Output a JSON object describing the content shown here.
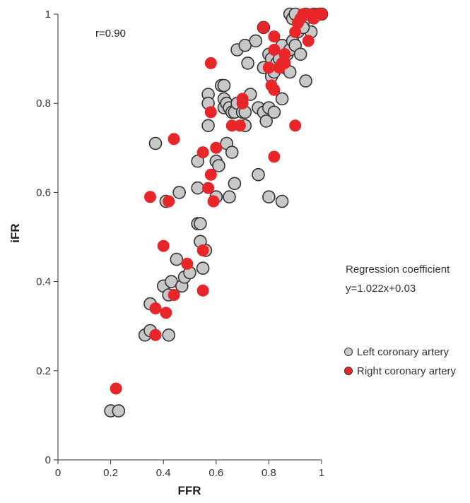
{
  "chart_data": {
    "type": "scatter",
    "title": "",
    "xlabel": "FFR",
    "ylabel": "iFR",
    "xlim": [
      0,
      1
    ],
    "ylim": [
      0,
      1
    ],
    "xticks": [
      0,
      0.2,
      0.4,
      0.6,
      0.8,
      1
    ],
    "yticks": [
      0,
      0.2,
      0.4,
      0.6,
      0.8,
      1
    ],
    "xtick_labels": [
      "0",
      "0.2",
      "0.4",
      "0.6",
      "0.8",
      "1"
    ],
    "ytick_labels": [
      "0",
      "0.2",
      "0.4",
      "0.6",
      "0.8",
      "1"
    ],
    "grid": false,
    "legend_position": "right",
    "annotation_r": "r=0.90",
    "regression_title": "Regression coefficient",
    "regression_equation": "y=1.022x+0.03",
    "series": [
      {
        "name": "Left coronary artery",
        "color": "#c8c8c8",
        "edge_color": "#333333",
        "points": [
          [
            0.2,
            0.11
          ],
          [
            0.23,
            0.11
          ],
          [
            0.33,
            0.28
          ],
          [
            0.35,
            0.29
          ],
          [
            0.42,
            0.28
          ],
          [
            0.35,
            0.35
          ],
          [
            0.4,
            0.39
          ],
          [
            0.42,
            0.37
          ],
          [
            0.43,
            0.4
          ],
          [
            0.47,
            0.39
          ],
          [
            0.48,
            0.41
          ],
          [
            0.5,
            0.42
          ],
          [
            0.45,
            0.45
          ],
          [
            0.55,
            0.43
          ],
          [
            0.56,
            0.47
          ],
          [
            0.54,
            0.49
          ],
          [
            0.53,
            0.53
          ],
          [
            0.54,
            0.53
          ],
          [
            0.37,
            0.71
          ],
          [
            0.41,
            0.58
          ],
          [
            0.46,
            0.6
          ],
          [
            0.53,
            0.61
          ],
          [
            0.53,
            0.67
          ],
          [
            0.6,
            0.67
          ],
          [
            0.61,
            0.66
          ],
          [
            0.64,
            0.71
          ],
          [
            0.66,
            0.69
          ],
          [
            0.65,
            0.59
          ],
          [
            0.67,
            0.62
          ],
          [
            0.6,
            0.59
          ],
          [
            0.57,
            0.82
          ],
          [
            0.57,
            0.8
          ],
          [
            0.57,
            0.75
          ],
          [
            0.62,
            0.84
          ],
          [
            0.63,
            0.84
          ],
          [
            0.63,
            0.81
          ],
          [
            0.63,
            0.79
          ],
          [
            0.64,
            0.8
          ],
          [
            0.65,
            0.79
          ],
          [
            0.66,
            0.78
          ],
          [
            0.67,
            0.78
          ],
          [
            0.68,
            0.8
          ],
          [
            0.7,
            0.78
          ],
          [
            0.71,
            0.78
          ],
          [
            0.71,
            0.75
          ],
          [
            0.73,
            0.82
          ],
          [
            0.76,
            0.79
          ],
          [
            0.78,
            0.78
          ],
          [
            0.79,
            0.76
          ],
          [
            0.8,
            0.79
          ],
          [
            0.82,
            0.78
          ],
          [
            0.81,
            0.86
          ],
          [
            0.85,
            0.81
          ],
          [
            0.76,
            0.64
          ],
          [
            0.8,
            0.59
          ],
          [
            0.85,
            0.58
          ],
          [
            0.68,
            0.92
          ],
          [
            0.71,
            0.93
          ],
          [
            0.72,
            0.89
          ],
          [
            0.75,
            0.94
          ],
          [
            0.78,
            0.97
          ],
          [
            0.78,
            0.88
          ],
          [
            0.8,
            0.91
          ],
          [
            0.81,
            0.9
          ],
          [
            0.82,
            0.87
          ],
          [
            0.83,
            0.89
          ],
          [
            0.84,
            0.9
          ],
          [
            0.85,
            0.93
          ],
          [
            0.86,
            0.88
          ],
          [
            0.87,
            0.91
          ],
          [
            0.88,
            0.87
          ],
          [
            0.88,
            0.92
          ],
          [
            0.89,
            0.94
          ],
          [
            0.9,
            0.93
          ],
          [
            0.91,
            0.96
          ],
          [
            0.92,
            0.91
          ],
          [
            0.93,
            0.98
          ],
          [
            0.94,
            0.85
          ],
          [
            0.96,
            0.96
          ],
          [
            0.88,
            1.0
          ],
          [
            0.89,
            0.99
          ],
          [
            0.9,
            1.0
          ],
          [
            0.94,
            1.0
          ],
          [
            0.97,
            1.0
          ],
          [
            0.99,
            1.0
          ],
          [
            1.0,
            1.0
          ],
          [
            0.93,
            0.97
          ]
        ]
      },
      {
        "name": "Right coronary artery",
        "color": "#e8262a",
        "edge_color": "#e8262a",
        "points": [
          [
            0.22,
            0.16
          ],
          [
            0.37,
            0.28
          ],
          [
            0.37,
            0.34
          ],
          [
            0.41,
            0.33
          ],
          [
            0.44,
            0.37
          ],
          [
            0.4,
            0.48
          ],
          [
            0.49,
            0.44
          ],
          [
            0.55,
            0.38
          ],
          [
            0.55,
            0.47
          ],
          [
            0.35,
            0.59
          ],
          [
            0.42,
            0.58
          ],
          [
            0.44,
            0.72
          ],
          [
            0.55,
            0.69
          ],
          [
            0.58,
            0.64
          ],
          [
            0.57,
            0.61
          ],
          [
            0.59,
            0.58
          ],
          [
            0.6,
            0.7
          ],
          [
            0.58,
            0.89
          ],
          [
            0.58,
            0.78
          ],
          [
            0.66,
            0.75
          ],
          [
            0.69,
            0.75
          ],
          [
            0.7,
            0.81
          ],
          [
            0.7,
            0.8
          ],
          [
            0.78,
            0.97
          ],
          [
            0.8,
            0.88
          ],
          [
            0.81,
            0.84
          ],
          [
            0.82,
            0.83
          ],
          [
            0.82,
            0.95
          ],
          [
            0.82,
            0.92
          ],
          [
            0.84,
            0.88
          ],
          [
            0.85,
            0.89
          ],
          [
            0.86,
            0.91
          ],
          [
            0.86,
            0.89
          ],
          [
            0.82,
            0.68
          ],
          [
            0.9,
            0.75
          ],
          [
            0.9,
            0.96
          ],
          [
            0.91,
            0.98
          ],
          [
            0.92,
            0.99
          ],
          [
            0.93,
            1.0
          ],
          [
            0.95,
            0.94
          ],
          [
            0.96,
            1.0
          ],
          [
            0.97,
            0.99
          ],
          [
            0.99,
            1.0
          ],
          [
            1.0,
            1.0
          ]
        ]
      }
    ]
  }
}
